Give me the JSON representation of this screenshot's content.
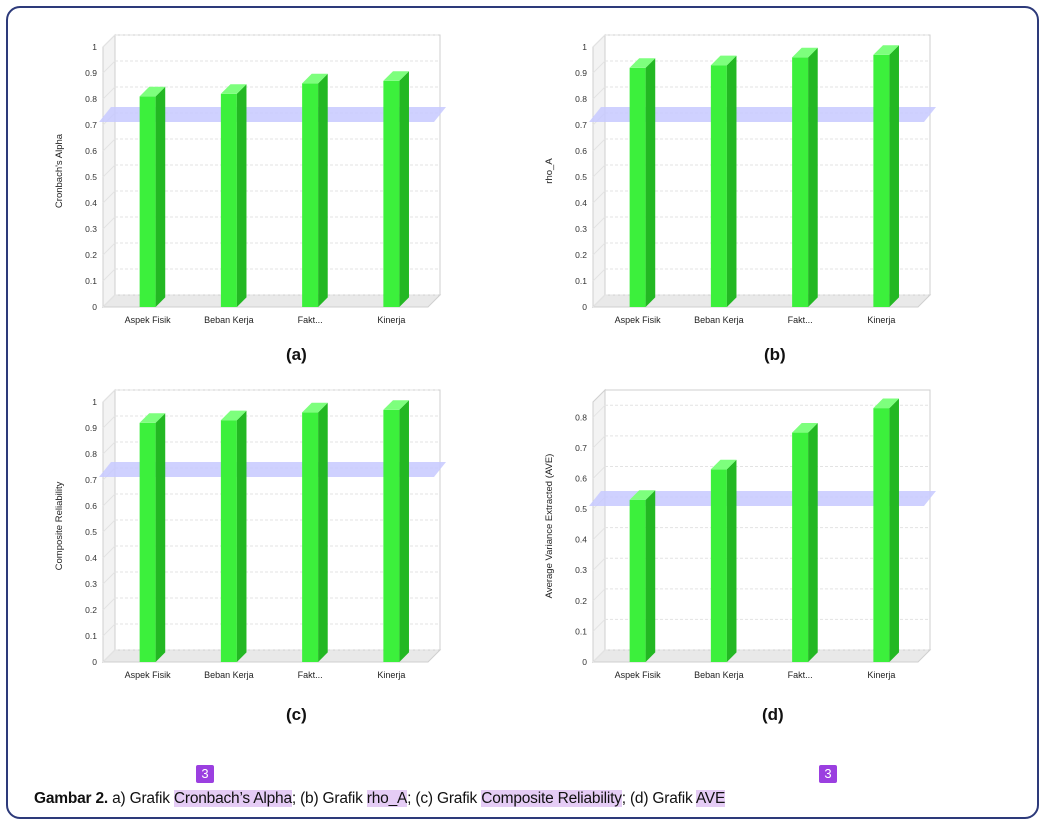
{
  "caption": {
    "lead": "Gambar 2.",
    "text_a": " a) Grafik ",
    "hl_a": "Cronbach’s Alpha",
    "text_b": "; (b) Grafik ",
    "hl_b": "rho_A",
    "text_c": "; (c) Grafik ",
    "hl_c": "Composite Reliability",
    "text_d": "; (d) Grafik ",
    "hl_d": "AVE",
    "badge_1": "3",
    "badge_2": "3"
  },
  "colors": {
    "bar_front": "#3cf03c",
    "bar_side": "#23b823",
    "bar_top": "#7dff7d",
    "threshold_band": "#c7c9ff",
    "plot_bg": "#ffffff",
    "grid": "#e3e3e3",
    "frame_border": "#2d3a7a",
    "highlight": "#e5ccf5",
    "badge": "#9b3fe0"
  },
  "chart_data": [
    {
      "type": "bar",
      "panel_label": "(a)",
      "ylabel": "Cronbach's Alpha",
      "categories": [
        "Aspek Fisik",
        "Beban Kerja",
        "Fakt...",
        "Kinerja"
      ],
      "values": [
        0.81,
        0.82,
        0.86,
        0.87
      ],
      "ylim": [
        0,
        1
      ],
      "yticks": [
        "0",
        "0.1",
        "0.2",
        "0.3",
        "0.4",
        "0.5",
        "0.6",
        "0.7",
        "0.8",
        "0.9",
        "1"
      ],
      "threshold": 0.7,
      "grid": true
    },
    {
      "type": "bar",
      "panel_label": "(b)",
      "ylabel": "rho_A",
      "categories": [
        "Aspek Fisik",
        "Beban Kerja",
        "Fakt...",
        "Kinerja"
      ],
      "values": [
        0.92,
        0.93,
        0.96,
        0.97
      ],
      "ylim": [
        0,
        1
      ],
      "yticks": [
        "0",
        "0.1",
        "0.2",
        "0.3",
        "0.4",
        "0.5",
        "0.6",
        "0.7",
        "0.8",
        "0.9",
        "1"
      ],
      "threshold": 0.7,
      "grid": true
    },
    {
      "type": "bar",
      "panel_label": "(c)",
      "ylabel": "Composite Reliability",
      "categories": [
        "Aspek Fisik",
        "Beban Kerja",
        "Fakt...",
        "Kinerja"
      ],
      "values": [
        0.92,
        0.93,
        0.96,
        0.97
      ],
      "ylim": [
        0,
        1
      ],
      "yticks": [
        "0",
        "0.1",
        "0.2",
        "0.3",
        "0.4",
        "0.5",
        "0.6",
        "0.7",
        "0.8",
        "0.9",
        "1"
      ],
      "threshold": 0.7,
      "grid": true
    },
    {
      "type": "bar",
      "panel_label": "(d)",
      "ylabel": "Average Variance Extracted (AVE)",
      "categories": [
        "Aspek Fisik",
        "Beban Kerja",
        "Fakt...",
        "Kinerja"
      ],
      "values": [
        0.53,
        0.63,
        0.75,
        0.83
      ],
      "ylim": [
        0,
        0.85
      ],
      "yticks": [
        "0",
        "0.1",
        "0.2",
        "0.3",
        "0.4",
        "0.5",
        "0.6",
        "0.7",
        "0.8"
      ],
      "threshold": 0.5,
      "grid": true
    }
  ]
}
